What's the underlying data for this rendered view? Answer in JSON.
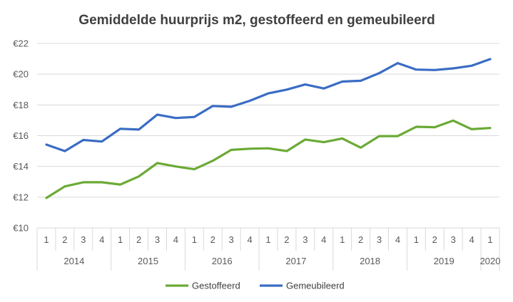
{
  "chart_data": {
    "type": "line",
    "title": "Gemiddelde huurprijs m2, gestoffeerd en gemeubileerd",
    "xlabel": "",
    "ylabel": "",
    "ylim": [
      10,
      22
    ],
    "y_ticks": [
      "€10",
      "€12",
      "€14",
      "€16",
      "€18",
      "€20",
      "€22"
    ],
    "y_tick_values": [
      10,
      12,
      14,
      16,
      18,
      20,
      22
    ],
    "grid": "horizontal",
    "legend_position": "bottom",
    "categories": [
      "1",
      "2",
      "3",
      "4",
      "1",
      "2",
      "3",
      "4",
      "1",
      "2",
      "3",
      "4",
      "1",
      "2",
      "3",
      "4",
      "1",
      "2",
      "3",
      "4",
      "1",
      "2",
      "3",
      "4",
      "1"
    ],
    "years": [
      {
        "label": "2014",
        "count": 4
      },
      {
        "label": "2015",
        "count": 4
      },
      {
        "label": "2016",
        "count": 4
      },
      {
        "label": "2017",
        "count": 4
      },
      {
        "label": "2018",
        "count": 4
      },
      {
        "label": "2019",
        "count": 4
      },
      {
        "label": "2020",
        "count": 1
      }
    ],
    "series": [
      {
        "name": "Gestoffeerd",
        "color": "#6aaa35",
        "values": [
          11.95,
          12.7,
          12.97,
          12.97,
          12.82,
          13.35,
          14.22,
          14.0,
          13.82,
          14.37,
          15.08,
          15.15,
          15.18,
          15.0,
          15.75,
          15.58,
          15.82,
          15.22,
          15.97,
          15.97,
          16.58,
          16.55,
          16.98,
          16.42,
          16.5
        ]
      },
      {
        "name": "Gemeubileerd",
        "color": "#3a6cc4",
        "values": [
          15.42,
          15.0,
          15.72,
          15.62,
          16.45,
          16.4,
          17.37,
          17.15,
          17.22,
          17.93,
          17.88,
          18.27,
          18.75,
          19.0,
          19.33,
          19.07,
          19.52,
          19.57,
          20.07,
          20.72,
          20.3,
          20.27,
          20.38,
          20.55,
          20.98
        ]
      }
    ]
  }
}
